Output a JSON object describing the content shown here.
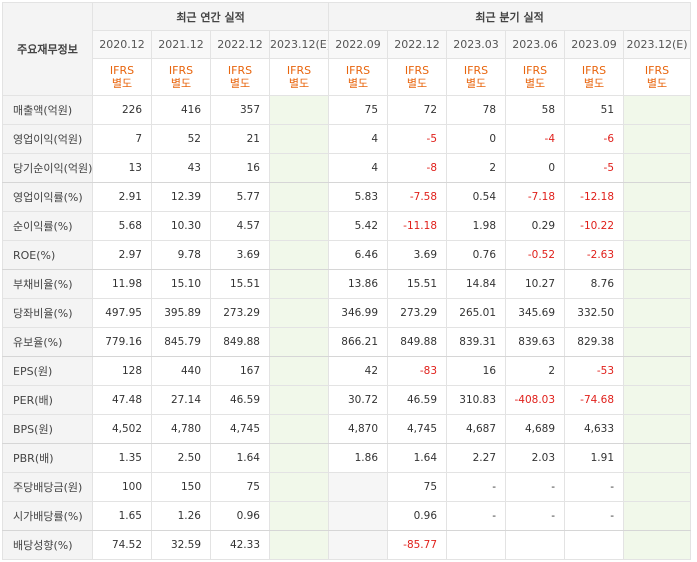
{
  "header": {
    "label": "주요재무정보",
    "annual_title": "최근 연간 실적",
    "quarterly_title": "최근 분기 실적",
    "annual_periods": [
      "2020.12",
      "2021.12",
      "2022.12",
      "2023.12(E)"
    ],
    "quarterly_periods": [
      "2022.09",
      "2022.12",
      "2023.03",
      "2023.06",
      "2023.09",
      "2023.12(E)"
    ],
    "ifrs_line1": "IFRS",
    "ifrs_line2": "별도"
  },
  "rows": [
    {
      "label": "매출액(억원)",
      "annual": [
        "226",
        "416",
        "357",
        ""
      ],
      "quarterly": [
        "75",
        "72",
        "78",
        "58",
        "51",
        ""
      ]
    },
    {
      "label": "영업이익(억원)",
      "annual": [
        "7",
        "52",
        "21",
        ""
      ],
      "quarterly": [
        "4",
        "-5",
        "0",
        "-4",
        "-6",
        ""
      ]
    },
    {
      "label": "당기순이익(억원)",
      "annual": [
        "13",
        "43",
        "16",
        ""
      ],
      "quarterly": [
        "4",
        "-8",
        "2",
        "0",
        "-5",
        ""
      ]
    },
    {
      "label": "영업이익률(%)",
      "annual": [
        "2.91",
        "12.39",
        "5.77",
        ""
      ],
      "quarterly": [
        "5.83",
        "-7.58",
        "0.54",
        "-7.18",
        "-12.18",
        ""
      ]
    },
    {
      "label": "순이익률(%)",
      "annual": [
        "5.68",
        "10.30",
        "4.57",
        ""
      ],
      "quarterly": [
        "5.42",
        "-11.18",
        "1.98",
        "0.29",
        "-10.22",
        ""
      ]
    },
    {
      "label": "ROE(%)",
      "annual": [
        "2.97",
        "9.78",
        "3.69",
        ""
      ],
      "quarterly": [
        "6.46",
        "3.69",
        "0.76",
        "-0.52",
        "-2.63",
        ""
      ]
    },
    {
      "label": "부채비율(%)",
      "annual": [
        "11.98",
        "15.10",
        "15.51",
        ""
      ],
      "quarterly": [
        "13.86",
        "15.51",
        "14.84",
        "10.27",
        "8.76",
        ""
      ]
    },
    {
      "label": "당좌비율(%)",
      "annual": [
        "497.95",
        "395.89",
        "273.29",
        ""
      ],
      "quarterly": [
        "346.99",
        "273.29",
        "265.01",
        "345.69",
        "332.50",
        ""
      ]
    },
    {
      "label": "유보율(%)",
      "annual": [
        "779.16",
        "845.79",
        "849.88",
        ""
      ],
      "quarterly": [
        "866.21",
        "849.88",
        "839.31",
        "839.63",
        "829.38",
        ""
      ]
    },
    {
      "label": "EPS(원)",
      "annual": [
        "128",
        "440",
        "167",
        ""
      ],
      "quarterly": [
        "42",
        "-83",
        "16",
        "2",
        "-53",
        ""
      ]
    },
    {
      "label": "PER(배)",
      "annual": [
        "47.48",
        "27.14",
        "46.59",
        ""
      ],
      "quarterly": [
        "30.72",
        "46.59",
        "310.83",
        "-408.03",
        "-74.68",
        ""
      ]
    },
    {
      "label": "BPS(원)",
      "annual": [
        "4,502",
        "4,780",
        "4,745",
        ""
      ],
      "quarterly": [
        "4,870",
        "4,745",
        "4,687",
        "4,689",
        "4,633",
        ""
      ]
    },
    {
      "label": "PBR(배)",
      "annual": [
        "1.35",
        "2.50",
        "1.64",
        ""
      ],
      "quarterly": [
        "1.86",
        "1.64",
        "2.27",
        "2.03",
        "1.91",
        ""
      ]
    },
    {
      "label": "주당배당금(원)",
      "annual": [
        "100",
        "150",
        "75",
        ""
      ],
      "quarterly": [
        "",
        "75",
        "-",
        "-",
        "-",
        ""
      ]
    },
    {
      "label": "시가배당률(%)",
      "annual": [
        "1.65",
        "1.26",
        "0.96",
        ""
      ],
      "quarterly": [
        "",
        "0.96",
        "-",
        "-",
        "-",
        ""
      ]
    },
    {
      "label": "배당성향(%)",
      "annual": [
        "74.52",
        "32.59",
        "42.33",
        ""
      ],
      "quarterly": [
        "",
        "-85.77",
        "",
        "",
        "",
        ""
      ]
    }
  ],
  "colors": {
    "negative": "#e0201b",
    "ifrs": "#e8650e",
    "estimate_bg": "#f1f8ea"
  }
}
